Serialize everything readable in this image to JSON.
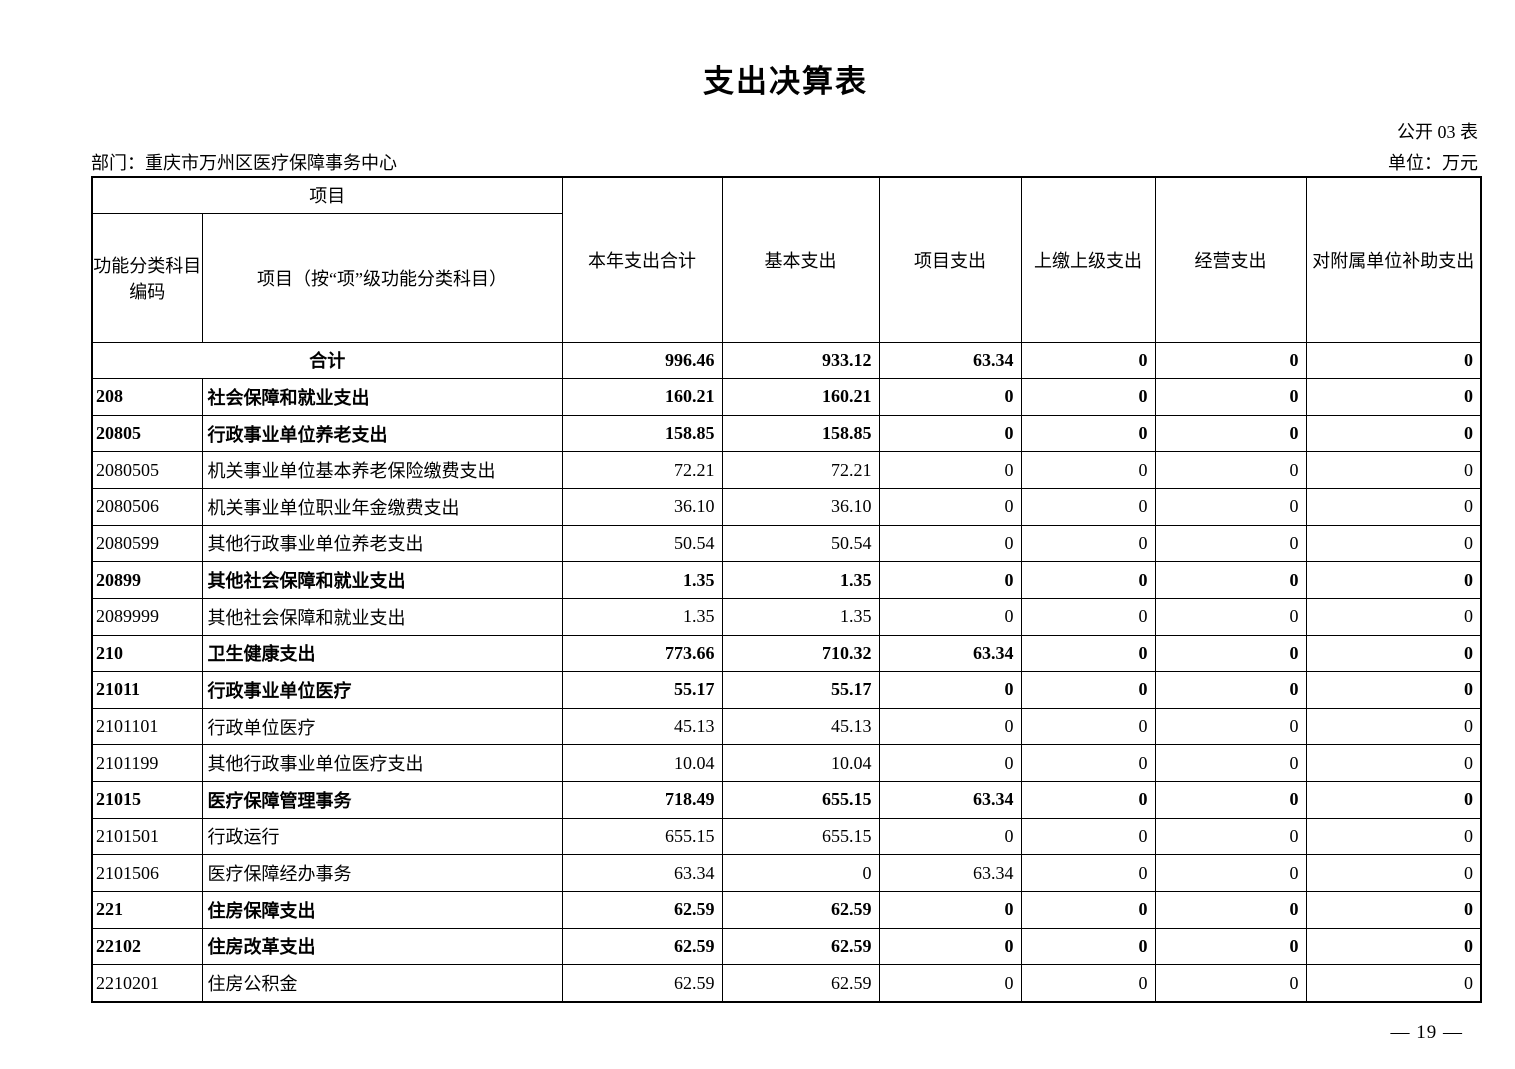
{
  "page": {
    "title": "支出决算表",
    "form_label": "公开 03 表",
    "department_label": "部门：重庆市万州区医疗保障事务中心",
    "unit_label": "单位：万元",
    "page_number": "— 19 —"
  },
  "colors": {
    "text": "#000000",
    "background": "#ffffff",
    "border": "#000000"
  },
  "table": {
    "header": {
      "project_group": "项目",
      "code_label_line1": "功能分类科目",
      "code_label_line2": "编码",
      "name_label": "项目（按“项”级功能分类科目）",
      "value_cols": [
        "本年支出合计",
        "基本支出",
        "项目支出",
        "上缴上级支出",
        "经营支出",
        "对附属单位补助支出"
      ]
    },
    "total_row": {
      "label": "合计",
      "values": [
        "996.46",
        "933.12",
        "63.34",
        "0",
        "0",
        "0"
      ],
      "bold": true
    },
    "rows": [
      {
        "code": "208",
        "name": "社会保障和就业支出",
        "values": [
          "160.21",
          "160.21",
          "0",
          "0",
          "0",
          "0"
        ],
        "bold": true
      },
      {
        "code": "20805",
        "name": "行政事业单位养老支出",
        "values": [
          "158.85",
          "158.85",
          "0",
          "0",
          "0",
          "0"
        ],
        "bold": true
      },
      {
        "code": "2080505",
        "name": "机关事业单位基本养老保险缴费支出",
        "values": [
          "72.21",
          "72.21",
          "0",
          "0",
          "0",
          "0"
        ],
        "bold": false
      },
      {
        "code": "2080506",
        "name": "机关事业单位职业年金缴费支出",
        "values": [
          "36.10",
          "36.10",
          "0",
          "0",
          "0",
          "0"
        ],
        "bold": false
      },
      {
        "code": "2080599",
        "name": "其他行政事业单位养老支出",
        "values": [
          "50.54",
          "50.54",
          "0",
          "0",
          "0",
          "0"
        ],
        "bold": false
      },
      {
        "code": "20899",
        "name": "其他社会保障和就业支出",
        "values": [
          "1.35",
          "1.35",
          "0",
          "0",
          "0",
          "0"
        ],
        "bold": true
      },
      {
        "code": "2089999",
        "name": "其他社会保障和就业支出",
        "values": [
          "1.35",
          "1.35",
          "0",
          "0",
          "0",
          "0"
        ],
        "bold": false
      },
      {
        "code": "210",
        "name": "卫生健康支出",
        "values": [
          "773.66",
          "710.32",
          "63.34",
          "0",
          "0",
          "0"
        ],
        "bold": true
      },
      {
        "code": "21011",
        "name": "行政事业单位医疗",
        "values": [
          "55.17",
          "55.17",
          "0",
          "0",
          "0",
          "0"
        ],
        "bold": true
      },
      {
        "code": "2101101",
        "name": "行政单位医疗",
        "values": [
          "45.13",
          "45.13",
          "0",
          "0",
          "0",
          "0"
        ],
        "bold": false
      },
      {
        "code": "2101199",
        "name": "其他行政事业单位医疗支出",
        "values": [
          "10.04",
          "10.04",
          "0",
          "0",
          "0",
          "0"
        ],
        "bold": false
      },
      {
        "code": "21015",
        "name": "医疗保障管理事务",
        "values": [
          "718.49",
          "655.15",
          "63.34",
          "0",
          "0",
          "0"
        ],
        "bold": true
      },
      {
        "code": "2101501",
        "name": "行政运行",
        "values": [
          "655.15",
          "655.15",
          "0",
          "0",
          "0",
          "0"
        ],
        "bold": false
      },
      {
        "code": "2101506",
        "name": "医疗保障经办事务",
        "values": [
          "63.34",
          "0",
          "63.34",
          "0",
          "0",
          "0"
        ],
        "bold": false
      },
      {
        "code": "221",
        "name": "住房保障支出",
        "values": [
          "62.59",
          "62.59",
          "0",
          "0",
          "0",
          "0"
        ],
        "bold": true
      },
      {
        "code": "22102",
        "name": "住房改革支出",
        "values": [
          "62.59",
          "62.59",
          "0",
          "0",
          "0",
          "0"
        ],
        "bold": true
      },
      {
        "code": "2210201",
        "name": "住房公积金",
        "values": [
          "62.59",
          "62.59",
          "0",
          "0",
          "0",
          "0"
        ],
        "bold": false
      }
    ]
  }
}
